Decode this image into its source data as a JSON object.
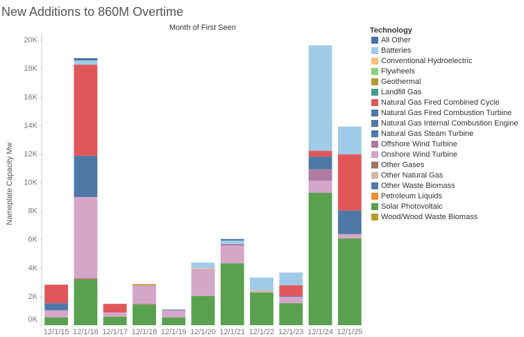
{
  "chart_data": {
    "type": "stacked_bar",
    "title": "New Additions to 860M Overtime",
    "subtitle": "Month of First Seen",
    "y_label": "Nameplate Capacity Mw",
    "legend_title": "Technology",
    "categories": [
      "12/1/15",
      "12/1/16",
      "12/1/17",
      "12/1/18",
      "12/1/19",
      "12/1/20",
      "12/1/21",
      "12/1/22",
      "12/1/23",
      "12/1/24",
      "12/1/25"
    ],
    "ylim": [
      0,
      20500
    ],
    "yticks": [
      {
        "value": 0,
        "label": "0K"
      },
      {
        "value": 2000,
        "label": "2K"
      },
      {
        "value": 4000,
        "label": "4K"
      },
      {
        "value": 6000,
        "label": "6K"
      },
      {
        "value": 8000,
        "label": "8K"
      },
      {
        "value": 10000,
        "label": "10K"
      },
      {
        "value": 12000,
        "label": "12K"
      },
      {
        "value": 14000,
        "label": "14K"
      },
      {
        "value": 16000,
        "label": "16K"
      },
      {
        "value": 18000,
        "label": "18K"
      },
      {
        "value": 20000,
        "label": "20K"
      }
    ],
    "series": [
      {
        "name": "All Other",
        "color": "#4a6fa5",
        "values": [
          0,
          150,
          0,
          0,
          0,
          0,
          100,
          0,
          0,
          0,
          0
        ]
      },
      {
        "name": "Batteries",
        "color": "#a0cbe8",
        "values": [
          0,
          300,
          0,
          0,
          0,
          400,
          250,
          900,
          900,
          7400,
          1950
        ]
      },
      {
        "name": "Conventional Hydroelectric",
        "color": "#ffbe7d",
        "values": [
          0,
          0,
          0,
          0,
          0,
          50,
          0,
          0,
          0,
          0,
          0
        ]
      },
      {
        "name": "Flywheels",
        "color": "#8cd17d",
        "values": [
          0,
          0,
          0,
          0,
          0,
          0,
          0,
          0,
          0,
          0,
          0
        ]
      },
      {
        "name": "Geothermal",
        "color": "#b6992d",
        "values": [
          0,
          0,
          0,
          80,
          0,
          0,
          0,
          0,
          0,
          0,
          0
        ]
      },
      {
        "name": "Landfill Gas",
        "color": "#499894",
        "values": [
          0,
          0,
          0,
          0,
          0,
          0,
          0,
          0,
          0,
          0,
          0
        ]
      },
      {
        "name": "Natural Gas Fired Combined Cycle",
        "color": "#e15759",
        "values": [
          1300,
          6400,
          600,
          0,
          0,
          0,
          0,
          0,
          750,
          400,
          3950
        ]
      },
      {
        "name": "Natural Gas Fired Combustion Turbine",
        "color": "#4e79a7",
        "values": [
          500,
          2900,
          0,
          0,
          50,
          0,
          0,
          0,
          50,
          900,
          1650
        ]
      },
      {
        "name": "Natural Gas Internal Combustion Engine",
        "color": "#4e79a7",
        "values": [
          0,
          0,
          0,
          0,
          0,
          0,
          0,
          0,
          0,
          0,
          0
        ]
      },
      {
        "name": "Natural Gas Steam Turbine",
        "color": "#4e79a7",
        "values": [
          0,
          0,
          0,
          0,
          0,
          0,
          0,
          0,
          0,
          0,
          0
        ]
      },
      {
        "name": "Offshore Wind Turbine",
        "color": "#b07aa1",
        "values": [
          0,
          0,
          0,
          0,
          0,
          0,
          100,
          0,
          0,
          800,
          0
        ]
      },
      {
        "name": "Onshore Wind Turbine",
        "color": "#d4a6c8",
        "values": [
          500,
          5700,
          300,
          1300,
          500,
          1900,
          1250,
          0,
          450,
          850,
          300
        ]
      },
      {
        "name": "Other Gases",
        "color": "#9d7660",
        "values": [
          0,
          100,
          0,
          50,
          0,
          0,
          0,
          0,
          0,
          0,
          0
        ]
      },
      {
        "name": "Other Natural Gas",
        "color": "#d7b5a6",
        "values": [
          0,
          0,
          0,
          0,
          0,
          0,
          0,
          150,
          0,
          0,
          0
        ]
      },
      {
        "name": "Other Waste Biomass",
        "color": "#4e79a7",
        "values": [
          0,
          0,
          0,
          0,
          0,
          0,
          0,
          0,
          0,
          0,
          0
        ]
      },
      {
        "name": "Petroleum Liquids",
        "color": "#f28e2b",
        "values": [
          0,
          0,
          0,
          0,
          0,
          0,
          0,
          0,
          0,
          0,
          0
        ]
      },
      {
        "name": "Solar Photovoltaic",
        "color": "#59a14f",
        "values": [
          550,
          3200,
          600,
          1450,
          550,
          2050,
          4350,
          2300,
          1550,
          9300,
          6100
        ]
      },
      {
        "name": "Wood/Wood Waste Biomass",
        "color": "#b6992d",
        "values": [
          0,
          0,
          0,
          0,
          0,
          0,
          0,
          0,
          0,
          0,
          0
        ]
      }
    ]
  }
}
